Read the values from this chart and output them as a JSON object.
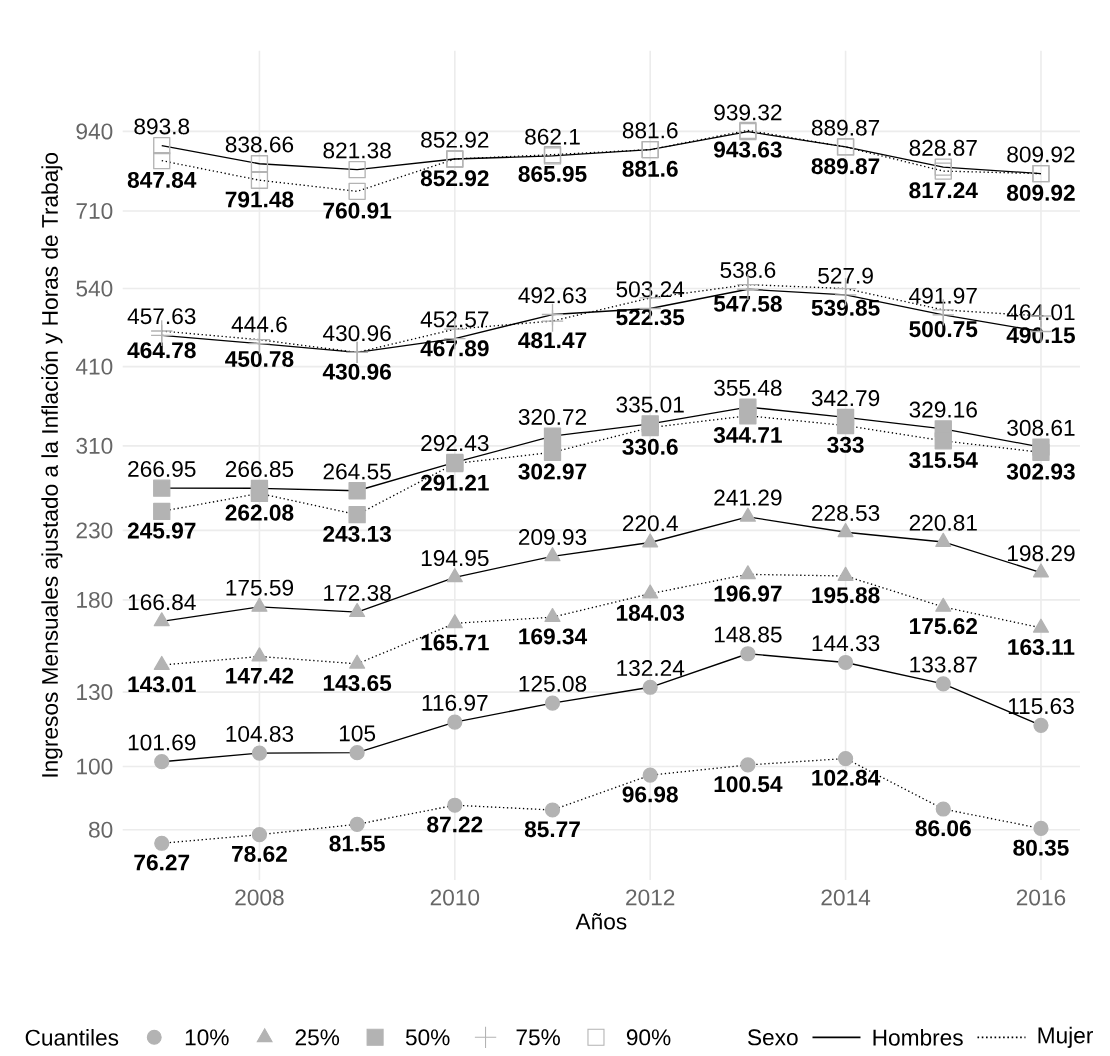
{
  "chart_data": {
    "type": "line",
    "xlabel": "Años",
    "ylabel": "Ingresos Mensuales ajustado a la Inflación y Horas de Trabajo",
    "legend_title": "Cuantiles",
    "annotations": [
      "Sexo",
      "Hombres",
      "Mujer"
    ],
    "x": [
      2007,
      2008,
      2009,
      2010,
      2011,
      2012,
      2013,
      2014,
      2015,
      2016
    ],
    "xlim": [
      2006.6,
      2016.4
    ],
    "xticks": [
      2008,
      2010,
      2012,
      2014,
      2016
    ],
    "ylim": [
      67,
      1250
    ],
    "yticks": [
      80,
      100,
      130,
      180,
      230,
      310,
      410,
      540,
      710,
      940
    ],
    "log": true,
    "grid": true,
    "legend": "bottom",
    "series": [
      {
        "name": "10%",
        "color": "#b3b3b3",
        "marker": "circle",
        "line_style": "solid",
        "values": [
          101.69,
          104.83,
          105,
          116.97,
          125.08,
          132.24,
          148.85,
          144.33,
          133.87,
          115.63
        ],
        "value_labels": [
          "101.69",
          "104.83",
          "105",
          "116.97",
          "125.08",
          "132.24",
          "148.85",
          "144.33",
          "133.87",
          "115.63"
        ]
      },
      {
        "color": "#b3b3b3",
        "marker": "circle",
        "line_style": "dotted",
        "values": [
          76.27,
          78.62,
          81.55,
          87.22,
          85.77,
          96.98,
          100.54,
          102.84,
          86.06,
          80.35
        ],
        "value_labels": [
          "76.27",
          "78.62",
          "81.55",
          "87.22",
          "85.77",
          "96.98",
          "100.54",
          "102.84",
          "86.06",
          "80.35"
        ]
      },
      {
        "name": "25%",
        "color": "#b3b3b3",
        "marker": "triangle",
        "line_style": "solid",
        "values": [
          166.84,
          175.59,
          172.38,
          194.95,
          209.93,
          220.4,
          241.29,
          228.53,
          220.81,
          198.29
        ],
        "value_labels": [
          "166.84",
          "175.59",
          "172.38",
          "194.95",
          "209.93",
          "220.4",
          "241.29",
          "228.53",
          "220.81",
          "198.29"
        ]
      },
      {
        "color": "#b3b3b3",
        "marker": "triangle",
        "line_style": "dotted",
        "values": [
          143.01,
          147.42,
          143.65,
          165.71,
          169.34,
          184.03,
          196.97,
          195.88,
          175.62,
          163.11
        ],
        "value_labels": [
          "143.01",
          "147.42",
          "143.65",
          "165.71",
          "169.34",
          "184.03",
          "196.97",
          "195.88",
          "175.62",
          "163.11"
        ]
      },
      {
        "name": "50%",
        "color": "#b3b3b3",
        "marker": "square",
        "line_style": "solid",
        "values": [
          266.95,
          266.85,
          264.55,
          292.43,
          320.72,
          335.01,
          355.48,
          342.79,
          329.16,
          308.61
        ],
        "value_labels": [
          "266.95",
          "266.85",
          "264.55",
          "292.43",
          "320.72",
          "335.01",
          "355.48",
          "342.79",
          "329.16",
          "308.61"
        ]
      },
      {
        "color": "#b3b3b3",
        "marker": "square",
        "line_style": "dotted",
        "values": [
          245.97,
          262.08,
          243.13,
          291.21,
          302.97,
          330.6,
          344.71,
          333,
          315.54,
          302.93
        ],
        "value_labels": [
          "245.97",
          "262.08",
          "243.13",
          "291.21",
          "302.97",
          "330.6",
          "344.71",
          "333",
          "315.54",
          "302.93"
        ]
      },
      {
        "name": "75%",
        "color": "#b3b3b3",
        "marker": "cross",
        "line_style": "solid",
        "values": [
          457.63,
          444.6,
          430.96,
          452.57,
          492.63,
          503.24,
          538.6,
          527.9,
          491.97,
          464.01
        ],
        "value_labels": [
          "457.63",
          "444.6",
          "430.96",
          "452.57",
          "492.63",
          "503.24",
          "538.6",
          "527.9",
          "491.97",
          "464.01"
        ]
      },
      {
        "color": "#b3b3b3",
        "marker": "cross",
        "line_style": "dotted",
        "values": [
          464.78,
          450.78,
          430.96,
          467.89,
          481.47,
          522.35,
          547.58,
          539.85,
          500.75,
          490.15
        ],
        "value_labels": [
          "464.78",
          "450.78",
          "430.96",
          "467.89",
          "481.47",
          "522.35",
          "547.58",
          "539.85",
          "500.75",
          "490.15"
        ]
      },
      {
        "name": "90%",
        "color": "#b3b3b3",
        "marker": "square",
        "line_style": "solid",
        "values": [
          893.8,
          838.66,
          821.38,
          852.92,
          862.1,
          881.6,
          939.32,
          889.87,
          828.87,
          809.92
        ],
        "value_labels": [
          "893.8",
          "838.66",
          "821.38",
          "852.92",
          "862.1",
          "881.6",
          "939.32",
          "889.87",
          "828.87",
          "809.92"
        ]
      },
      {
        "color": "#b3b3b3",
        "marker": "square",
        "line_style": "dotted",
        "values": [
          847.84,
          791.48,
          760.91,
          852.92,
          865.95,
          881.6,
          943.63,
          889.87,
          817.24,
          809.92
        ],
        "value_labels": [
          "847.84",
          "791.48",
          "760.91",
          "852.92",
          "865.95",
          "881.6",
          "943.63",
          "889.87",
          "817.24",
          "809.92"
        ]
      }
    ]
  }
}
